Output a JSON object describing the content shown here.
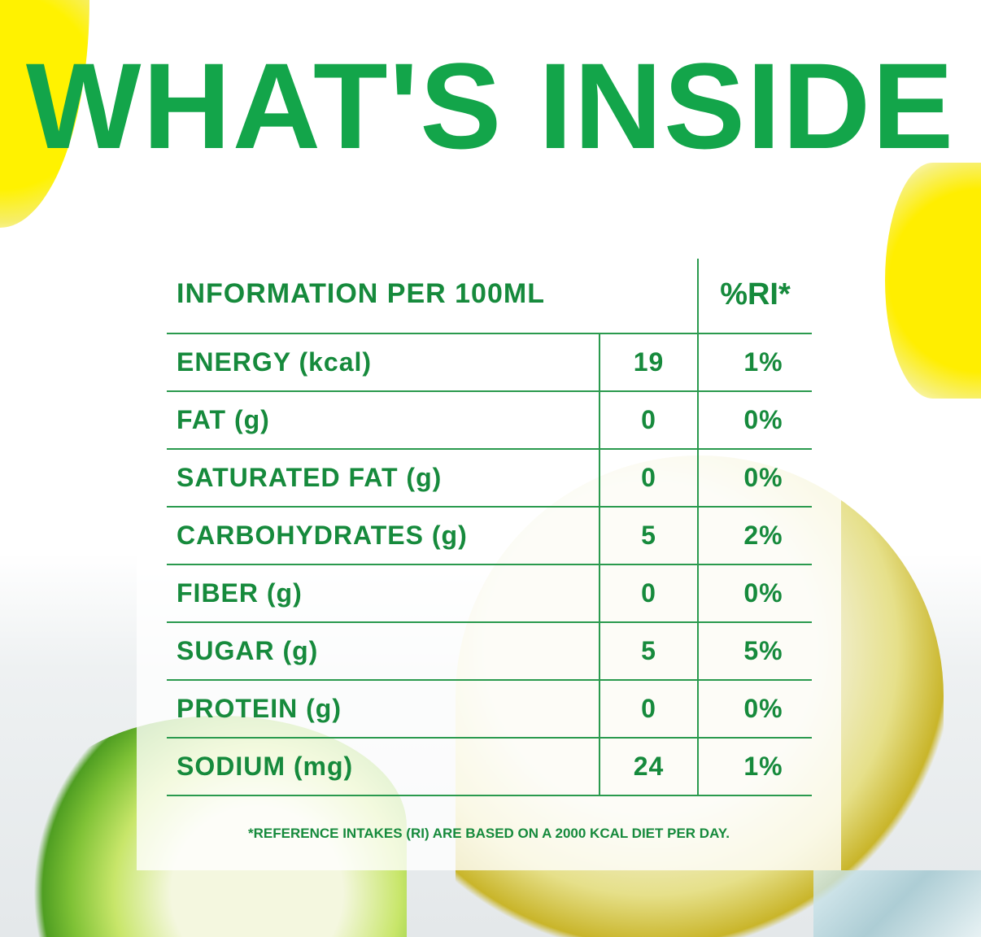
{
  "title": "WHAT'S INSIDE",
  "colors": {
    "title": "#13a54a",
    "table": "#168a3c"
  },
  "table": {
    "header_label": "INFORMATION PER 100ML",
    "header_ri": "%RI*",
    "rows": [
      {
        "name": "ENERGY (kcal)",
        "value": "19",
        "ri": "1%"
      },
      {
        "name": "FAT (g)",
        "value": "0",
        "ri": "0%"
      },
      {
        "name": "SATURATED FAT (g)",
        "value": "0",
        "ri": "0%"
      },
      {
        "name": "CARBOHYDRATES (g)",
        "value": "5",
        "ri": "2%"
      },
      {
        "name": "FIBER (g)",
        "value": "0",
        "ri": "0%"
      },
      {
        "name": "SUGAR (g)",
        "value": "5",
        "ri": "5%"
      },
      {
        "name": "PROTEIN (g)",
        "value": "0",
        "ri": "0%"
      },
      {
        "name": "SODIUM (mg)",
        "value": "24",
        "ri": "1%"
      }
    ]
  },
  "footnote": "*REFERENCE INTAKES (RI) ARE BASED ON A 2000 KCAL DIET PER DAY."
}
